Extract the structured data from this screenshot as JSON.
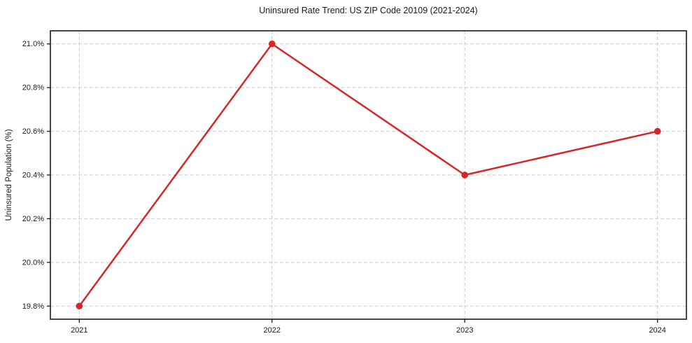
{
  "chart_data": {
    "type": "line",
    "title": "Uninsured Rate Trend: US ZIP Code 20109 (2021-2024)",
    "xlabel": "",
    "ylabel": "Uninsured Population (%)",
    "x": [
      2021,
      2022,
      2023,
      2024
    ],
    "series": [
      {
        "name": "Uninsured Rate",
        "values": [
          19.8,
          21.0,
          20.4,
          20.6
        ]
      }
    ],
    "xticks": {
      "values": [
        2021,
        2022,
        2023,
        2024
      ],
      "labels": [
        "2021",
        "2022",
        "2023",
        "2024"
      ]
    },
    "yticks": {
      "values": [
        19.8,
        20.0,
        20.2,
        20.4,
        20.6,
        20.8,
        21.0
      ],
      "labels": [
        "19.8%",
        "20.0%",
        "20.2%",
        "20.4%",
        "20.6%",
        "20.8%",
        "21.0%"
      ]
    },
    "xlim": [
      2020.85,
      2024.15
    ],
    "ylim": [
      19.74,
      21.06
    ],
    "grid": true,
    "legend": "none",
    "colors": {
      "line": "#d62728",
      "marker": "#d62728",
      "grid": "#c9c9c9",
      "frame": "#1a1a1a",
      "text": "#1a1a1a",
      "background": "#ffffff"
    }
  }
}
